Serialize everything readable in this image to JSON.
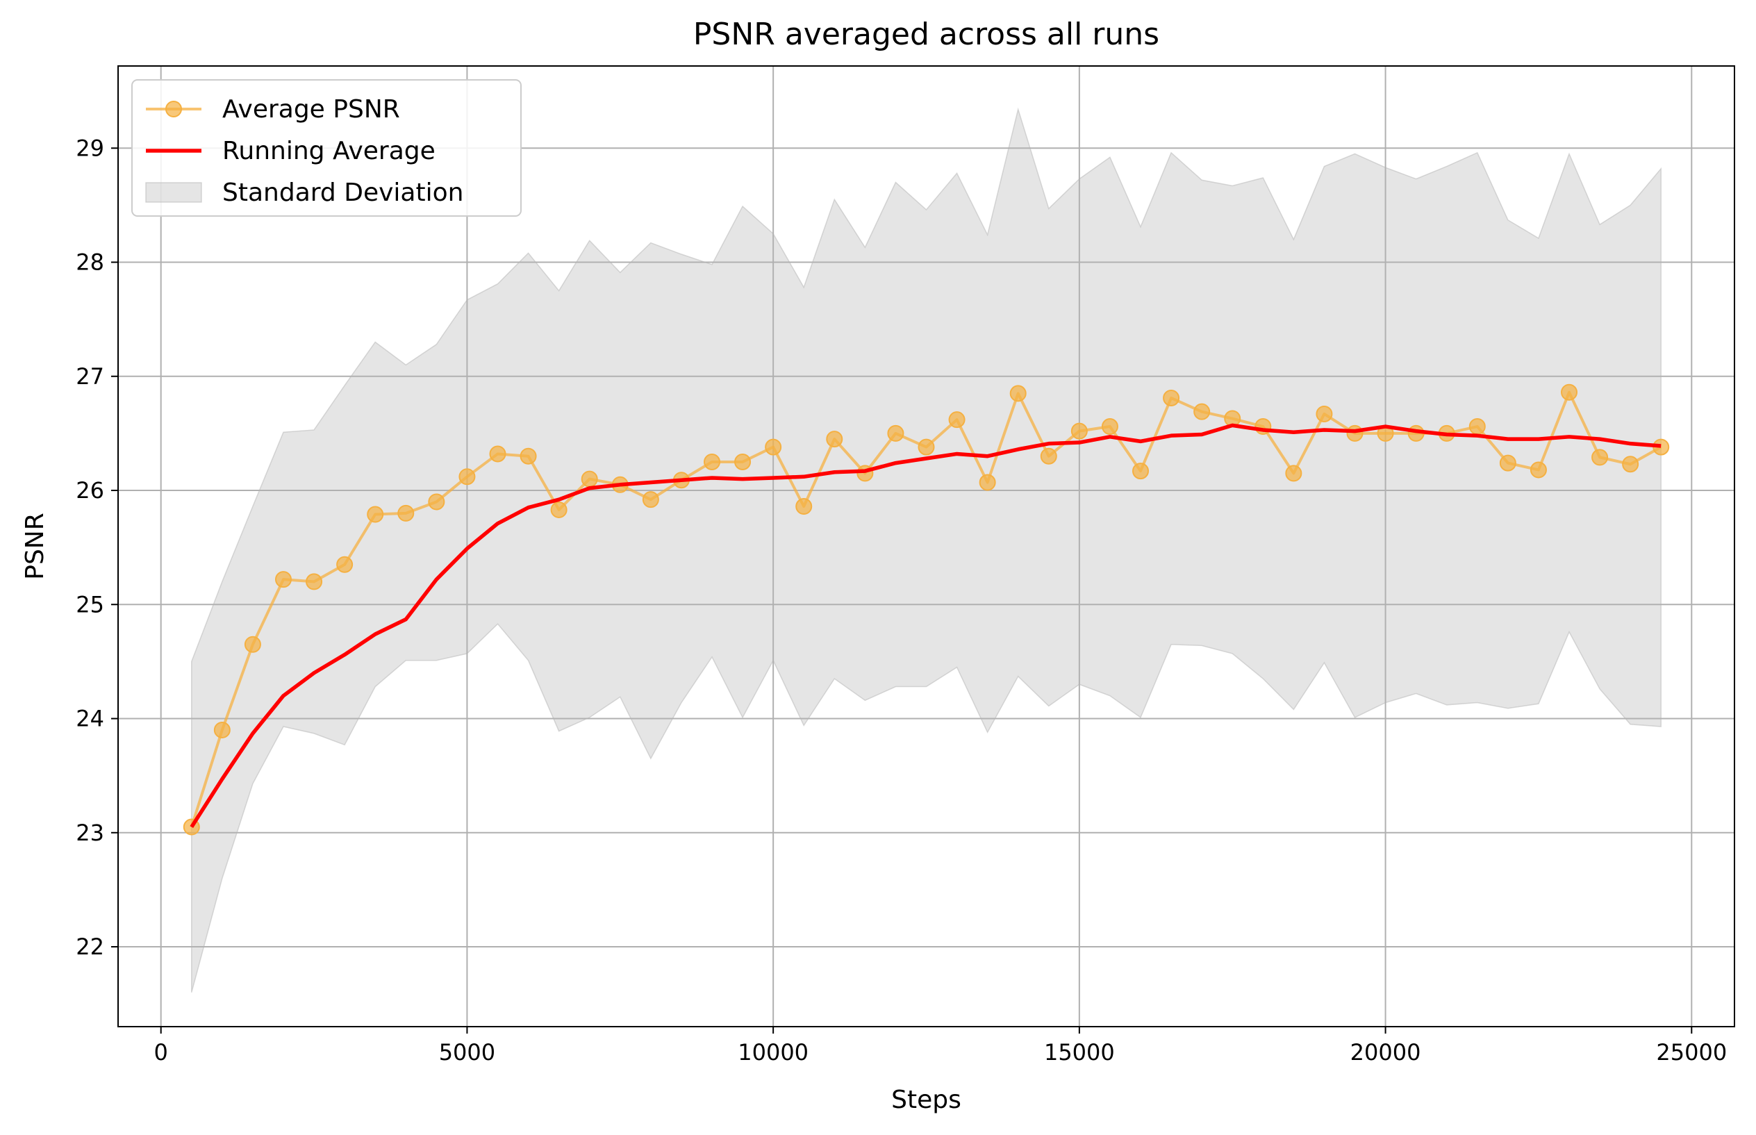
{
  "chart_data": {
    "type": "line",
    "title": "PSNR averaged across all runs",
    "xlabel": "Steps",
    "ylabel": "PSNR",
    "xlim": [
      -700,
      25700
    ],
    "ylim": [
      21.3,
      29.72
    ],
    "xticks": [
      0,
      5000,
      10000,
      15000,
      20000,
      25000
    ],
    "yticks": [
      22,
      23,
      24,
      25,
      26,
      27,
      28,
      29
    ],
    "grid": true,
    "legend_position": "top-left",
    "x": [
      500,
      1000,
      1500,
      2000,
      2500,
      3000,
      3500,
      4000,
      4500,
      5000,
      5500,
      6000,
      6500,
      7000,
      7500,
      8000,
      8500,
      9000,
      9500,
      10000,
      10500,
      11000,
      11500,
      12000,
      12500,
      13000,
      13500,
      14000,
      14500,
      15000,
      15500,
      16000,
      16500,
      17000,
      17500,
      18000,
      18500,
      19000,
      19500,
      20000,
      20500,
      21000,
      21500,
      22000,
      22500,
      23000,
      23500,
      24000,
      24500
    ],
    "series": [
      {
        "name": "Average PSNR",
        "kind": "line-marker",
        "color": "#f5b041",
        "values": [
          23.05,
          23.9,
          24.65,
          25.22,
          25.2,
          25.35,
          25.79,
          25.8,
          25.9,
          26.12,
          26.32,
          26.3,
          25.83,
          26.1,
          26.05,
          25.92,
          26.09,
          26.25,
          26.25,
          26.38,
          25.86,
          26.45,
          26.15,
          26.5,
          26.38,
          26.62,
          26.07,
          26.85,
          26.3,
          26.52,
          26.56,
          26.17,
          26.81,
          26.69,
          26.63,
          26.56,
          26.15,
          26.67,
          26.5,
          26.5,
          26.5,
          26.5,
          26.56,
          26.24,
          26.18,
          26.86,
          26.29,
          26.23,
          26.38
        ]
      },
      {
        "name": "Running Average",
        "kind": "line",
        "color": "#ff0000",
        "values": [
          23.05,
          23.47,
          23.87,
          24.2,
          24.4,
          24.56,
          24.74,
          24.87,
          25.22,
          25.49,
          25.71,
          25.85,
          25.92,
          26.02,
          26.05,
          26.07,
          26.09,
          26.11,
          26.1,
          26.11,
          26.12,
          26.16,
          26.17,
          26.24,
          26.28,
          26.32,
          26.3,
          26.36,
          26.41,
          26.42,
          26.47,
          26.43,
          26.48,
          26.49,
          26.57,
          26.53,
          26.51,
          26.53,
          26.52,
          26.56,
          26.52,
          26.49,
          26.48,
          26.45,
          26.45,
          26.47,
          26.45,
          26.41,
          26.39
        ]
      },
      {
        "name": "Standard Deviation",
        "kind": "band",
        "color": "#b4b4b4",
        "lower": [
          21.6,
          22.6,
          23.43,
          23.93,
          23.87,
          23.77,
          24.28,
          24.51,
          24.51,
          24.57,
          24.83,
          24.51,
          23.89,
          24.01,
          24.19,
          23.65,
          24.14,
          24.54,
          24.01,
          24.51,
          23.94,
          24.35,
          24.16,
          24.28,
          24.28,
          24.45,
          23.88,
          24.37,
          24.11,
          24.3,
          24.2,
          24.01,
          24.65,
          24.64,
          24.57,
          24.35,
          24.08,
          24.49,
          24.01,
          24.14,
          24.22,
          24.12,
          24.14,
          24.09,
          24.13,
          24.76,
          24.26,
          23.95,
          23.93
        ],
        "upper": [
          24.5,
          25.2,
          25.86,
          26.51,
          26.53,
          26.92,
          27.3,
          27.1,
          27.28,
          27.67,
          27.81,
          28.08,
          27.75,
          28.19,
          27.91,
          28.17,
          28.07,
          27.98,
          28.49,
          28.25,
          27.78,
          28.55,
          28.13,
          28.7,
          28.46,
          28.78,
          28.24,
          29.34,
          28.47,
          28.73,
          28.92,
          28.31,
          28.96,
          28.72,
          28.67,
          28.74,
          28.2,
          28.84,
          28.95,
          28.83,
          28.73,
          28.84,
          28.96,
          28.37,
          28.21,
          28.95,
          28.33,
          28.5,
          28.82
        ]
      }
    ]
  }
}
